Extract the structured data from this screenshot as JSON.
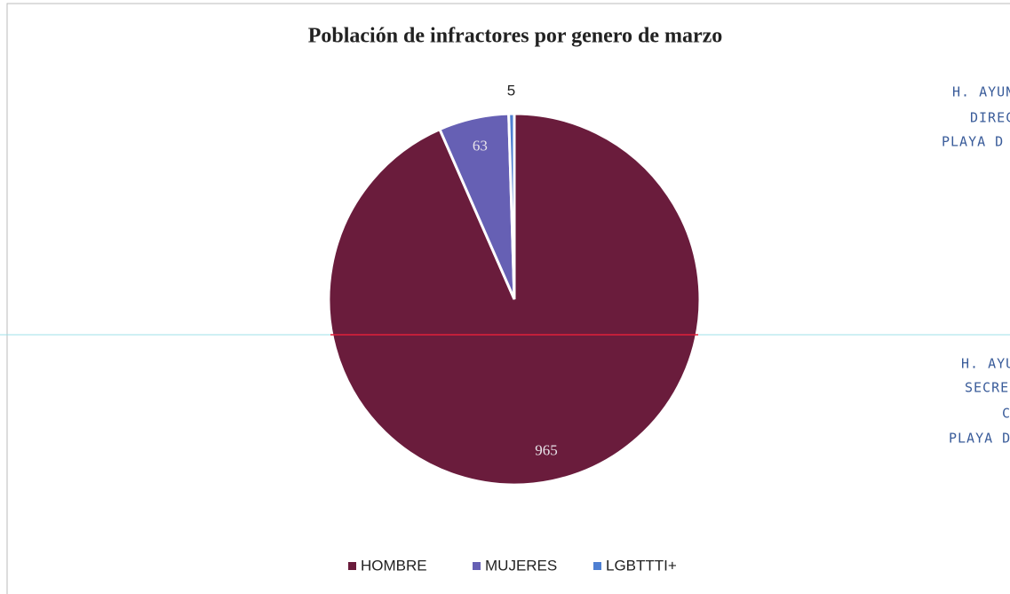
{
  "chart_data": {
    "type": "pie",
    "title": "Población de infractores por genero de marzo",
    "categories": [
      "HOMBRE",
      "MUJERES",
      "LGBTTTI+"
    ],
    "values": [
      965,
      63,
      5
    ],
    "colors": [
      "#6a1c3c",
      "#6660b4",
      "#4e7fd2"
    ],
    "legend": "bottom"
  },
  "stamp_text": [
    "H. AYUN",
    "DIREC",
    "PLAYA D",
    "H. AYUN",
    "SECRE",
    "C",
    "PLAYA D"
  ]
}
